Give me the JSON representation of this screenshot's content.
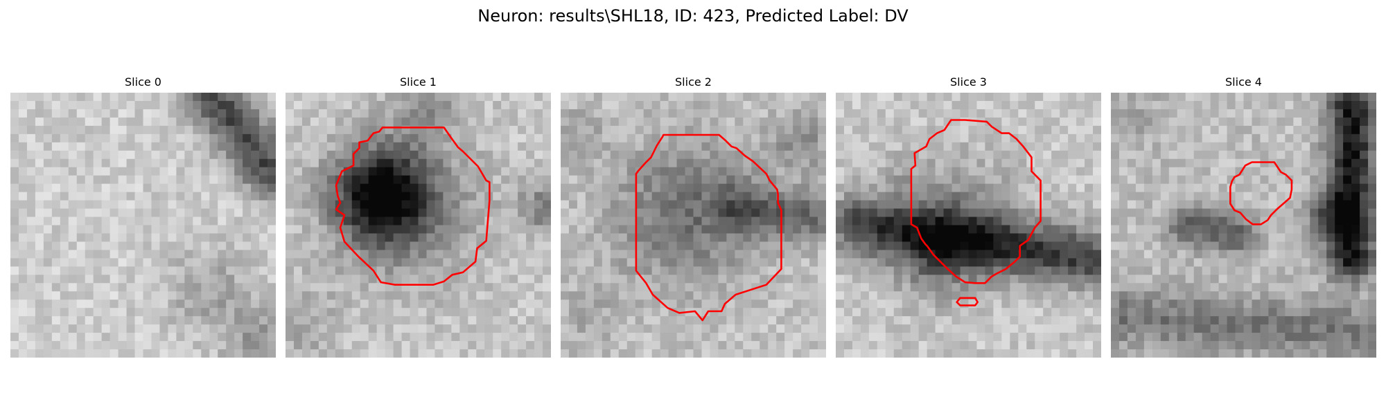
{
  "figure": {
    "title": "Neuron: results\\SHL18, ID: 423, Predicted Label: DV"
  },
  "slices": [
    {
      "title": "Slice 0"
    },
    {
      "title": "Slice 1"
    },
    {
      "title": "Slice 2"
    },
    {
      "title": "Slice 3"
    },
    {
      "title": "Slice 4"
    }
  ],
  "colors": {
    "contour": "#ff0000",
    "background": "#ffffff"
  }
}
